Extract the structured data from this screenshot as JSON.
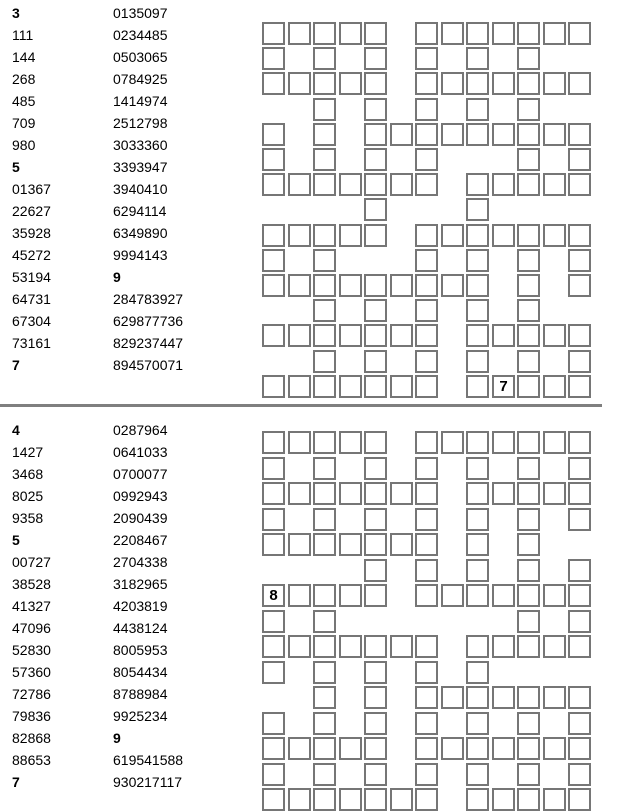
{
  "colors": {
    "cell_border": "#767676",
    "separator": "#7f7f7f",
    "text": "#000000"
  },
  "puzzles": [
    {
      "name": "top-fill-in-puzzle",
      "word_list_col1": [
        {
          "t": "3",
          "b": true
        },
        {
          "t": "111",
          "b": false
        },
        {
          "t": "144",
          "b": false
        },
        {
          "t": "268",
          "b": false
        },
        {
          "t": "485",
          "b": false
        },
        {
          "t": "709",
          "b": false
        },
        {
          "t": "980",
          "b": false
        },
        {
          "t": "5",
          "b": true
        },
        {
          "t": "01367",
          "b": false
        },
        {
          "t": "22627",
          "b": false
        },
        {
          "t": "35928",
          "b": false
        },
        {
          "t": "45272",
          "b": false
        },
        {
          "t": "53194",
          "b": false
        },
        {
          "t": "64731",
          "b": false
        },
        {
          "t": "67304",
          "b": false
        },
        {
          "t": "73161",
          "b": false
        },
        {
          "t": "7",
          "b": true
        }
      ],
      "word_list_col2": [
        {
          "t": "0135097",
          "b": false
        },
        {
          "t": "0234485",
          "b": false
        },
        {
          "t": "0503065",
          "b": false
        },
        {
          "t": "0784925",
          "b": false
        },
        {
          "t": "1414974",
          "b": false
        },
        {
          "t": "2512798",
          "b": false
        },
        {
          "t": "3033360",
          "b": false
        },
        {
          "t": "3393947",
          "b": false
        },
        {
          "t": "3940410",
          "b": false
        },
        {
          "t": "6294114",
          "b": false
        },
        {
          "t": "6349890",
          "b": false
        },
        {
          "t": "9994143",
          "b": false
        },
        {
          "t": "9",
          "b": true
        },
        {
          "t": "284783927",
          "b": false
        },
        {
          "t": "629877736",
          "b": false
        },
        {
          "t": "829237447",
          "b": false
        },
        {
          "t": "894570071",
          "b": false
        }
      ],
      "grid": {
        "rows": [
          "1111101111111",
          "1010101010100",
          "1111101111111",
          "0010101010100",
          "1010111111111",
          "1010101000101",
          "1111111011111",
          "0000100010000",
          "1111101111111",
          "1010001010101",
          "1111111110101",
          "0010101010100",
          "1111111011111",
          "0010101010101",
          "1111111011111"
        ],
        "given_digits": [
          {
            "row": 14,
            "col": 9,
            "value": "7"
          }
        ]
      }
    },
    {
      "name": "bottom-fill-in-puzzle",
      "word_list_col1": [
        {
          "t": "4",
          "b": true
        },
        {
          "t": "1427",
          "b": false
        },
        {
          "t": "3468",
          "b": false
        },
        {
          "t": "8025",
          "b": false
        },
        {
          "t": "9358",
          "b": false
        },
        {
          "t": "5",
          "b": true
        },
        {
          "t": "00727",
          "b": false
        },
        {
          "t": "38528",
          "b": false
        },
        {
          "t": "41327",
          "b": false
        },
        {
          "t": "47096",
          "b": false
        },
        {
          "t": "52830",
          "b": false
        },
        {
          "t": "57360",
          "b": false
        },
        {
          "t": "72786",
          "b": false
        },
        {
          "t": "79836",
          "b": false
        },
        {
          "t": "82868",
          "b": false
        },
        {
          "t": "88653",
          "b": false
        },
        {
          "t": "7",
          "b": true
        }
      ],
      "word_list_col2": [
        {
          "t": "0287964",
          "b": false
        },
        {
          "t": "0641033",
          "b": false
        },
        {
          "t": "0700077",
          "b": false
        },
        {
          "t": "0992943",
          "b": false
        },
        {
          "t": "2090439",
          "b": false
        },
        {
          "t": "2208467",
          "b": false
        },
        {
          "t": "2704338",
          "b": false
        },
        {
          "t": "3182965",
          "b": false
        },
        {
          "t": "4203819",
          "b": false
        },
        {
          "t": "4438124",
          "b": false
        },
        {
          "t": "8005953",
          "b": false
        },
        {
          "t": "8054434",
          "b": false
        },
        {
          "t": "8788984",
          "b": false
        },
        {
          "t": "9925234",
          "b": false
        },
        {
          "t": "9",
          "b": true
        },
        {
          "t": "619541588",
          "b": false
        },
        {
          "t": "930217117",
          "b": false
        }
      ],
      "grid": {
        "rows": [
          "1111101111111",
          "1010101010101",
          "1111111011111",
          "1010101010101",
          "1111111010100",
          "0000101010101",
          "1111101111111",
          "1010000000101",
          "1111111011111",
          "1010101010000",
          "0010101111111",
          "1010101010101",
          "1111101111111",
          "1010101010101",
          "1111111011111"
        ],
        "given_digits": [
          {
            "row": 6,
            "col": 0,
            "value": "8"
          }
        ]
      }
    }
  ]
}
